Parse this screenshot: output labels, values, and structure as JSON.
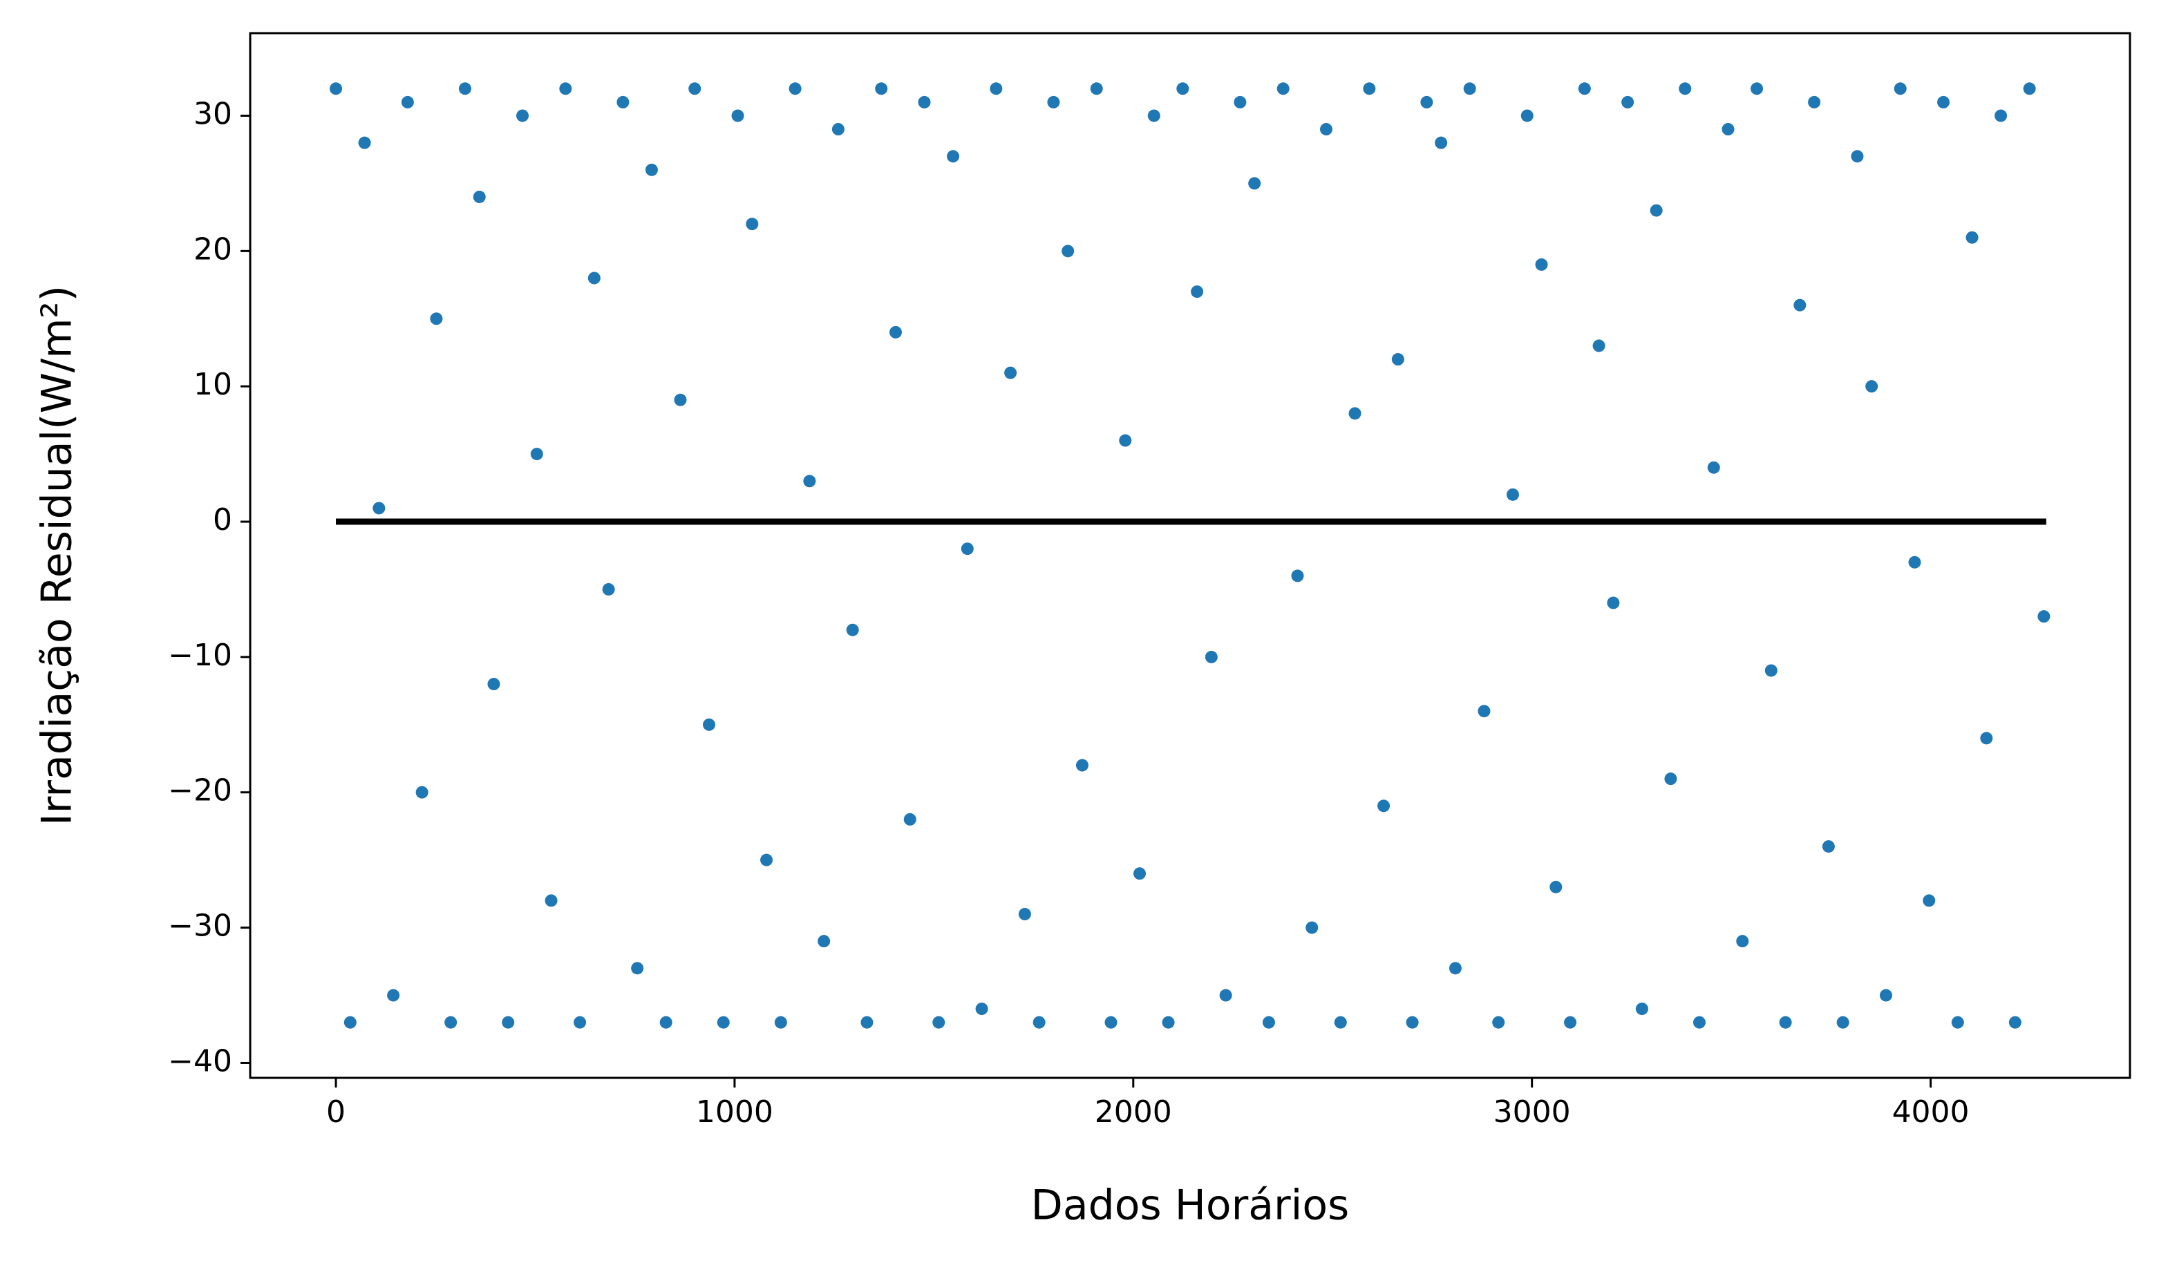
{
  "chart_data": {
    "type": "scatter",
    "xlabel": "Dados Horários",
    "ylabel": "Irradiação Residual(W/m²)",
    "xlim": [
      -215,
      4500
    ],
    "ylim": [
      -41.1,
      36.1
    ],
    "xticks": [
      0,
      1000,
      2000,
      3000,
      4000
    ],
    "yticks": [
      {
        "value": -40,
        "label": "−40"
      },
      {
        "value": -30,
        "label": "−30"
      },
      {
        "value": -20,
        "label": "−20"
      },
      {
        "value": -10,
        "label": "−10"
      },
      0,
      10,
      20,
      30
    ],
    "grid": false,
    "series": [
      {
        "type": "scatter",
        "color": "#1f77b4",
        "x": [
          0,
          36,
          72,
          108,
          144,
          180,
          216,
          252,
          288,
          324,
          360,
          396,
          432,
          468,
          504,
          540,
          576,
          612,
          648,
          684,
          720,
          756,
          792,
          828,
          864,
          900,
          936,
          972,
          1008,
          1044,
          1080,
          1116,
          1152,
          1188,
          1224,
          1260,
          1296,
          1332,
          1368,
          1404,
          1440,
          1476,
          1512,
          1548,
          1584,
          1620,
          1656,
          1692,
          1728,
          1764,
          1800,
          1836,
          1872,
          1908,
          1944,
          1980,
          2016,
          2052,
          2088,
          2124,
          2160,
          2196,
          2232,
          2268,
          2304,
          2340,
          2376,
          2412,
          2448,
          2484,
          2520,
          2556,
          2592,
          2628,
          2664,
          2700,
          2736,
          2772,
          2808,
          2844,
          2880,
          2916,
          2952,
          2988,
          3024,
          3060,
          3096,
          3132,
          3168,
          3204,
          3240,
          3276,
          3312,
          3348,
          3384,
          3420,
          3456,
          3492,
          3528,
          3564,
          3600,
          3636,
          3672,
          3708,
          3744,
          3780,
          3816,
          3852,
          3888,
          3924,
          3960,
          3996,
          4032,
          4068,
          4104,
          4140,
          4176,
          4212,
          4248,
          4284
        ],
        "values": [
          32,
          -37,
          28,
          1,
          -35,
          31,
          -20,
          15,
          -37,
          32,
          24,
          -12,
          -37,
          30,
          5,
          -28,
          32,
          -37,
          18,
          -5,
          31,
          -33,
          26,
          -37,
          9,
          32,
          -15,
          -37,
          30,
          22,
          -25,
          -37,
          32,
          3,
          -31,
          29,
          -8,
          -37,
          32,
          14,
          -22,
          31,
          -37,
          27,
          -2,
          -36,
          32,
          11,
          -29,
          -37,
          31,
          20,
          -18,
          32,
          -37,
          6,
          -26,
          30,
          -37,
          32,
          17,
          -10,
          -35,
          31,
          25,
          -37,
          32,
          -4,
          -30,
          29,
          -37,
          8,
          32,
          -21,
          12,
          -37,
          31,
          28,
          -33,
          32,
          -14,
          -37,
          2,
          30,
          19,
          -27,
          -37,
          32,
          13,
          -6,
          31,
          -36,
          23,
          -19,
          32,
          -37,
          4,
          29,
          -31,
          32,
          -11,
          -37,
          16,
          31,
          -24,
          -37,
          27,
          10,
          -35,
          32,
          -3,
          -28,
          31,
          -37,
          21,
          -16,
          30,
          -37,
          32,
          -7
        ]
      },
      {
        "type": "line",
        "color": "#000000",
        "x": [
          0,
          4290
        ],
        "values": [
          0,
          0
        ]
      }
    ]
  }
}
